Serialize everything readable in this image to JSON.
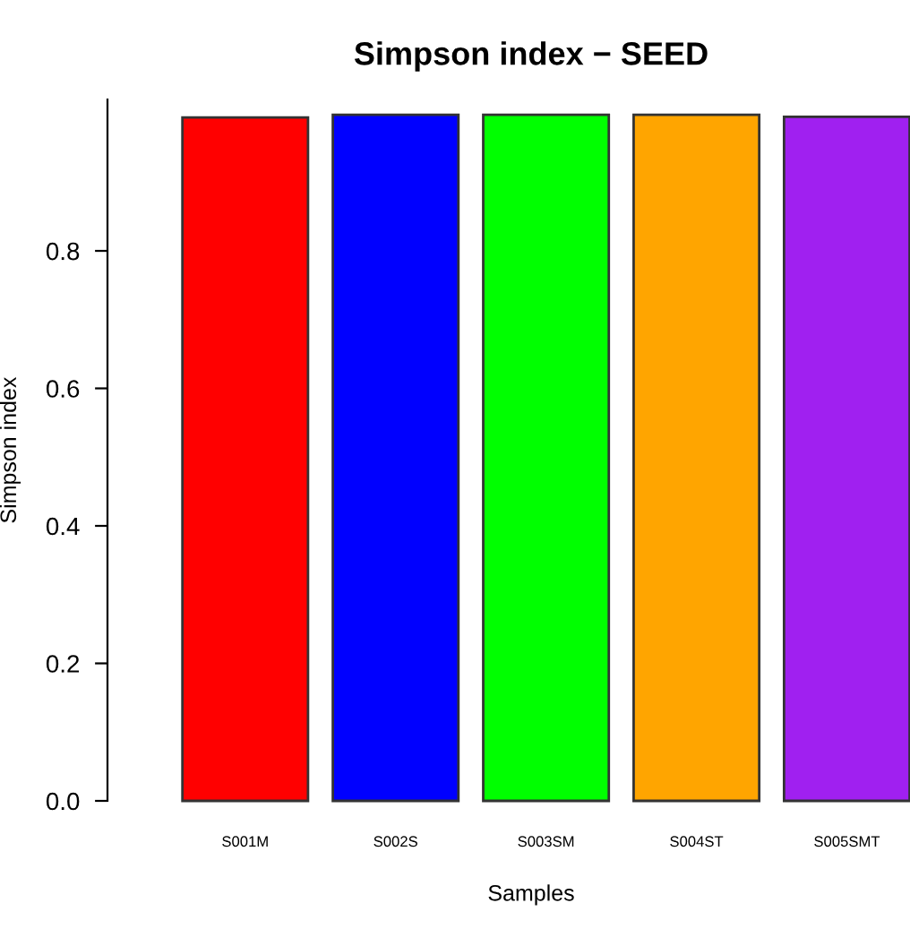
{
  "chart_data": {
    "type": "bar",
    "title": "Simpson index − SEED",
    "xlabel": "Samples",
    "ylabel": "Simpson index",
    "categories": [
      "S001M",
      "S002S",
      "S003SM",
      "S004ST",
      "S005SMT"
    ],
    "values": [
      0.994,
      0.998,
      0.998,
      0.998,
      0.995
    ],
    "colors": [
      "#ff0000",
      "#0000ff",
      "#00ff00",
      "#ffa500",
      "#a020f0"
    ],
    "ylim": [
      0,
      1.02
    ],
    "yticks": [
      {
        "value": 0,
        "label": "0.0"
      },
      0.2,
      0.4,
      0.6,
      0.8
    ],
    "grid": false
  }
}
